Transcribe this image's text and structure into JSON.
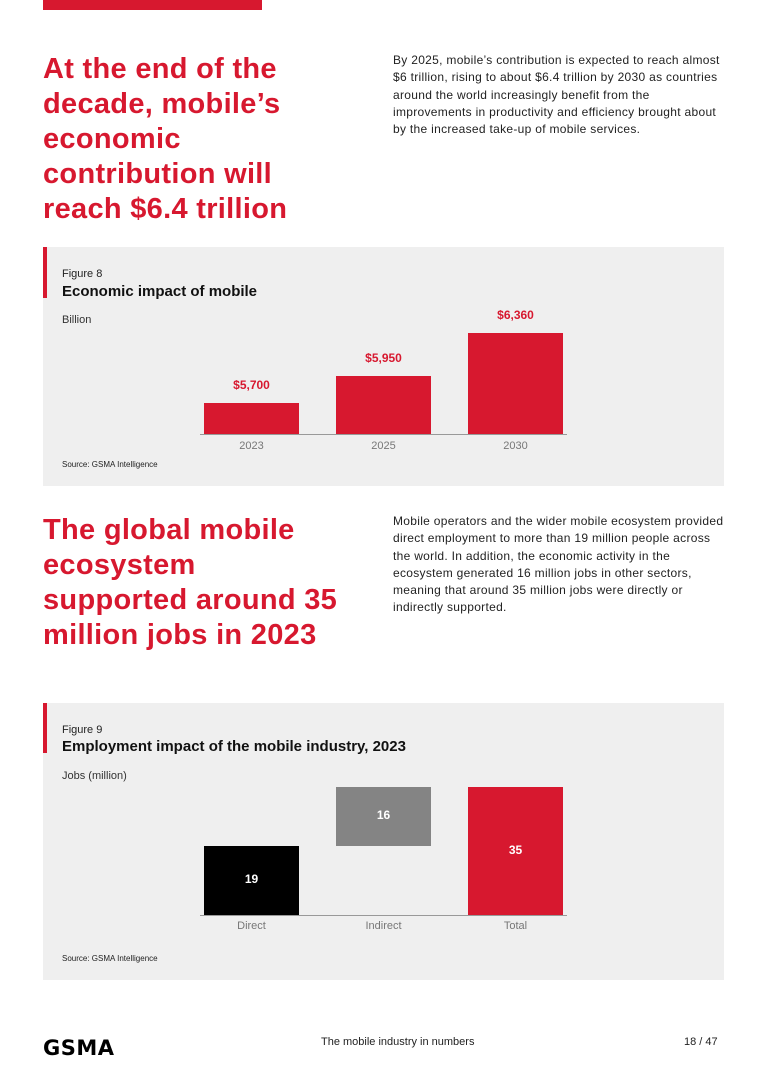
{
  "section1": {
    "headline": "At the end of the decade, mobile’s economic contribution will reach $6.4 trillion",
    "body": "By 2025, mobile’s contribution is expected to reach almost $6 trillion, rising to about $6.4 trillion by 2030 as countries around the world increasingly benefit from the improvements in productivity and efficiency brought about by the increased take-up of mobile services."
  },
  "section2": {
    "headline": "The global mobile ecosystem supported around 35 million jobs in 2023",
    "body": "Mobile operators and the wider mobile ecosystem provided direct employment to more than 19 million people across the world. In addition, the economic activity in the ecosystem generated 16 million jobs in other sectors, meaning that around 35 million jobs were directly or indirectly supported."
  },
  "colors": {
    "brand_red": "#d7182f",
    "panel_bg": "#efefef",
    "black": "#000000",
    "gray": "#848484"
  },
  "chart_data": [
    {
      "type": "bar",
      "figure_label": "Figure 8",
      "title": "Economic impact of mobile",
      "ylabel": "Billion",
      "categories": [
        "2023",
        "2025",
        "2030"
      ],
      "values": [
        5700,
        5950,
        6360
      ],
      "data_labels": [
        "$5,700",
        "$5,950",
        "$6,360"
      ],
      "source": "Source: GSMA Intelligence",
      "grid": false
    },
    {
      "type": "bar",
      "subtype": "waterfall",
      "figure_label": "Figure 9",
      "title": "Employment impact of the mobile industry, 2023",
      "ylabel": "Jobs (million)",
      "categories": [
        "Direct",
        "Indirect",
        "Total"
      ],
      "values": [
        19,
        16,
        35
      ],
      "bases": [
        0,
        19,
        0
      ],
      "data_labels": [
        "19",
        "16",
        "35"
      ],
      "bar_colors": [
        "#000000",
        "#848484",
        "#d7182f"
      ],
      "ylim": [
        0,
        35
      ],
      "source": "Source: GSMA Intelligence",
      "grid": false
    }
  ],
  "footer": {
    "logo": "GSMA",
    "title": "The mobile industry in numbers",
    "page": "18 / 47"
  }
}
